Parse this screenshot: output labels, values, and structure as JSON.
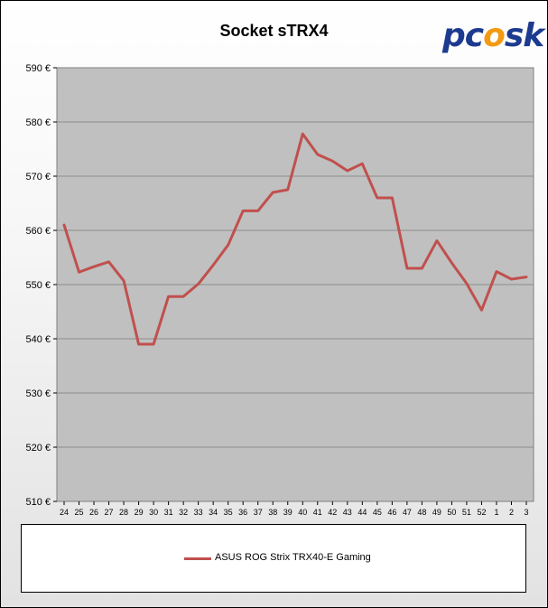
{
  "chart_data": {
    "type": "line",
    "title": "Socket sTRX4",
    "xlabel": "",
    "ylabel": "",
    "ylim": [
      510,
      590
    ],
    "yticks": [
      510,
      520,
      530,
      540,
      550,
      560,
      570,
      580,
      590
    ],
    "ytick_labels": [
      "510 €",
      "520 €",
      "530 €",
      "540 €",
      "550 €",
      "560 €",
      "570 €",
      "580 €",
      "590 €"
    ],
    "x": [
      "24",
      "25",
      "26",
      "27",
      "28",
      "29",
      "30",
      "31",
      "32",
      "33",
      "34",
      "35",
      "36",
      "37",
      "38",
      "39",
      "40",
      "41",
      "42",
      "43",
      "44",
      "45",
      "46",
      "47",
      "48",
      "49",
      "50",
      "51",
      "52",
      "1",
      "2",
      "3"
    ],
    "grid": true,
    "legend_position": "bottom",
    "series": [
      {
        "name": "ASUS ROG Strix TRX40-E Gaming",
        "color": "#c0504d",
        "values": [
          561,
          552.3,
          553.3,
          554.2,
          550.7,
          539,
          539,
          547.8,
          547.8,
          550.1,
          553.6,
          557.3,
          563.6,
          563.6,
          567,
          567.5,
          577.8,
          574,
          572.8,
          571,
          572.3,
          566,
          566,
          553,
          553,
          558.1,
          554,
          550.2,
          545.3,
          552.4,
          551,
          551.4
        ]
      }
    ]
  },
  "logo": {
    "text_a": "pc",
    "text_b": "o",
    "text_c": "sk"
  }
}
